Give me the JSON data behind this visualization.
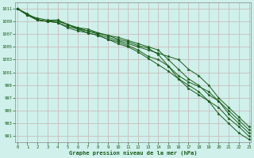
{
  "title": "Graphe pression niveau de la mer (hPa)",
  "bg_color": "#cff0eb",
  "grid_color": "#c8b4b4",
  "line_color": "#1a5c1a",
  "marker_color": "#1a5c1a",
  "x_min": 0,
  "x_max": 23,
  "y_min": 990.0,
  "y_max": 1012.0,
  "y_ticks": [
    991,
    993,
    995,
    997,
    999,
    1001,
    1003,
    1005,
    1007,
    1009,
    1011
  ],
  "x_ticks": [
    0,
    1,
    2,
    3,
    4,
    5,
    6,
    7,
    8,
    9,
    10,
    11,
    12,
    13,
    14,
    15,
    16,
    17,
    18,
    19,
    20,
    21,
    22,
    23
  ],
  "lines": [
    [
      1011,
      1010.2,
      1009.3,
      1009.0,
      1008.8,
      1008.2,
      1007.8,
      1007.2,
      1006.8,
      1006.2,
      1005.8,
      1005.2,
      1004.5,
      1003.5,
      1003.0,
      1002.0,
      1000.5,
      999.5,
      998.8,
      998.0,
      996.5,
      995.0,
      993.5,
      992.0
    ],
    [
      1011,
      1010.0,
      1009.2,
      1009.0,
      1008.8,
      1008.0,
      1007.5,
      1007.2,
      1006.8,
      1006.2,
      1005.5,
      1005.0,
      1004.2,
      1003.2,
      1002.2,
      1001.2,
      1000.0,
      999.0,
      998.0,
      996.5,
      995.5,
      993.8,
      992.5,
      991.0
    ],
    [
      1011,
      1010.0,
      1009.2,
      1009.0,
      1009.2,
      1008.5,
      1008.0,
      1007.5,
      1007.2,
      1006.8,
      1006.5,
      1006.0,
      1005.5,
      1005.0,
      1004.5,
      1003.0,
      1001.5,
      1000.0,
      999.0,
      997.5,
      996.5,
      994.5,
      993.0,
      991.5
    ],
    [
      1011,
      1010.0,
      1009.2,
      1009.0,
      1009.0,
      1008.5,
      1007.8,
      1007.5,
      1007.0,
      1006.5,
      1006.0,
      1005.5,
      1005.0,
      1004.5,
      1004.0,
      1003.5,
      1003.0,
      1001.5,
      1000.5,
      999.0,
      997.0,
      995.5,
      994.0,
      992.5
    ],
    [
      1011,
      1010.0,
      1009.5,
      1009.2,
      1009.2,
      1008.5,
      1008.0,
      1007.8,
      1007.2,
      1006.8,
      1006.2,
      1005.8,
      1005.2,
      1004.8,
      1003.8,
      1002.0,
      1000.0,
      998.5,
      997.5,
      996.5,
      994.5,
      993.0,
      991.5,
      990.5
    ]
  ]
}
